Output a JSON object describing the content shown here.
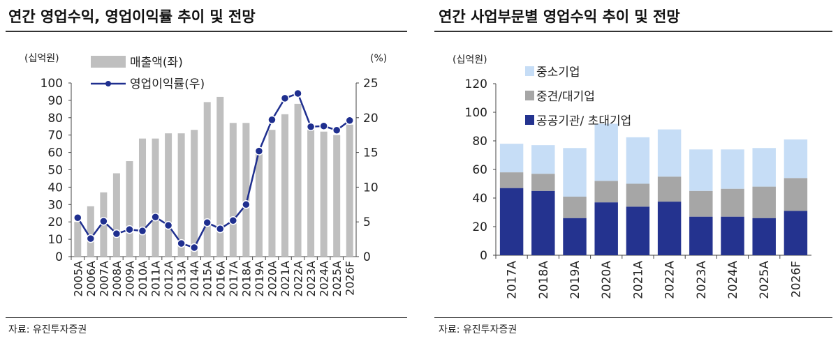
{
  "left_panel": {
    "title": "연간 영업수익, 영업이익률 추이 및 전망",
    "source": "자료: 유진투자증권"
  },
  "right_panel": {
    "title": "연간 사업부문별 영업수익 추이 및 전망",
    "source": "자료: 유진투자증권"
  },
  "chart_data": [
    {
      "type": "bar+line",
      "title": "연간 영업수익, 영업이익률 추이 및 전망",
      "ylabel": "(십억원)",
      "y2label": "(%)",
      "ylim": [
        0,
        100
      ],
      "yticks": [
        0,
        10,
        20,
        30,
        40,
        50,
        60,
        70,
        80,
        90,
        100
      ],
      "y2lim": [
        0,
        25
      ],
      "y2ticks": [
        0,
        5,
        10,
        15,
        20,
        25
      ],
      "categories": [
        "2005A",
        "2006A",
        "2007A",
        "2008A",
        "2009A",
        "2010A",
        "2011A",
        "2012A",
        "2013A",
        "2014A",
        "2015A",
        "2016A",
        "2017A",
        "2018A",
        "2019A",
        "2020A",
        "2021A",
        "2022A",
        "2023A",
        "2024A",
        "2025A",
        "2026F"
      ],
      "series": [
        {
          "name": "매출액(좌)",
          "type": "bar",
          "axis": "left",
          "color": "#bfbfbf",
          "values": [
            20,
            29,
            37,
            48,
            55,
            68,
            68,
            71,
            71,
            73,
            89,
            92,
            77,
            77,
            60,
            73,
            82,
            88,
            73,
            72,
            70,
            76
          ]
        },
        {
          "name": "영업이익률(우)",
          "type": "line",
          "axis": "right",
          "color": "#1f2f8f",
          "values": [
            5.6,
            2.6,
            5.1,
            3.3,
            3.9,
            3.7,
            5.7,
            4.5,
            1.9,
            1.3,
            4.9,
            4.0,
            5.2,
            7.5,
            15.2,
            19.7,
            22.8,
            23.5,
            18.7,
            18.8,
            18.2,
            19.6
          ]
        }
      ],
      "legend": "top-left",
      "grid": false
    },
    {
      "type": "stacked-bar",
      "title": "연간 사업부문별 영업수익 추이 및 전망",
      "ylabel": "(십억원)",
      "ylim": [
        0,
        120
      ],
      "yticks": [
        0,
        20,
        40,
        60,
        80,
        100,
        120
      ],
      "categories": [
        "2017A",
        "2018A",
        "2019A",
        "2020A",
        "2021A",
        "2022A",
        "2023A",
        "2024A",
        "2025A",
        "2026F"
      ],
      "series": [
        {
          "name": "공공기관/ 초대기업",
          "color": "#24338f",
          "values": [
            47,
            45,
            26,
            37,
            34,
            37.5,
            27,
            27,
            26,
            31
          ]
        },
        {
          "name": "중견/대기업",
          "color": "#a6a6a6",
          "values": [
            11,
            12,
            15,
            15,
            16,
            17.5,
            18,
            19.5,
            22,
            23
          ]
        },
        {
          "name": "중소기업",
          "color": "#c6ddf6",
          "values": [
            20,
            20,
            34,
            40,
            32.5,
            33,
            29,
            27.5,
            27,
            27
          ]
        }
      ],
      "legend_order": [
        "중소기업",
        "중견/대기업",
        "공공기관/ 초대기업"
      ],
      "legend": "top-left",
      "grid": false
    }
  ]
}
